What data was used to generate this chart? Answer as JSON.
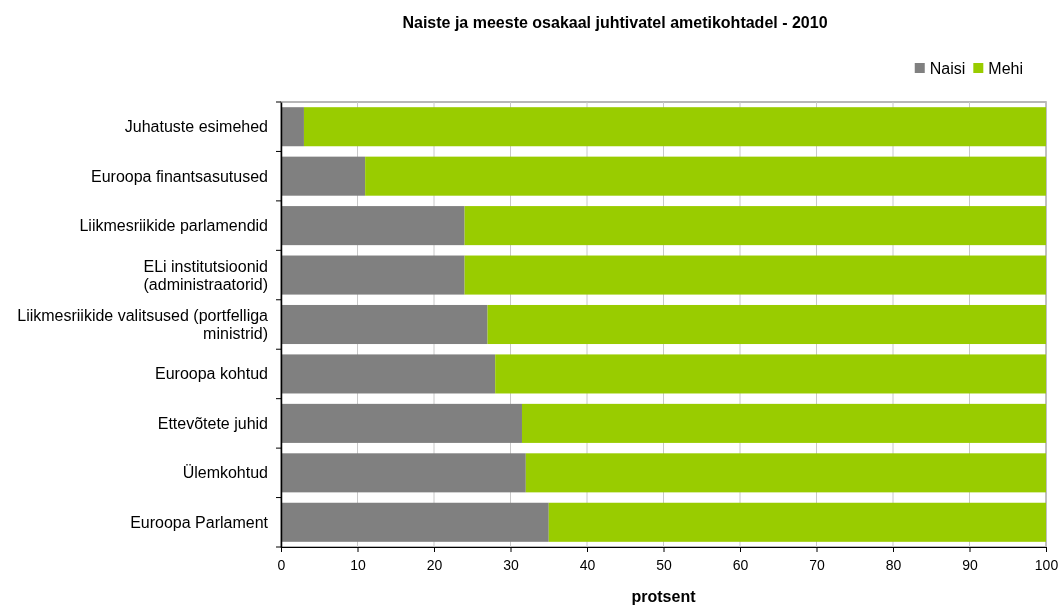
{
  "chart_data": {
    "type": "bar",
    "orientation": "horizontal",
    "stacked": true,
    "title": "Naiste ja meeste osakaal juhtivatel ametikohtadel - 2010",
    "xlabel": "protsent",
    "categories": [
      "Juhatuste esimehed",
      "Euroopa finantsasutused",
      "Liikmesriikide parlamendid",
      "ELi institutsioonid (administraatorid)",
      "Liikmesriikide valitsused (portfelliga ministrid)",
      "Euroopa kohtud",
      "Ettevõtete juhid",
      "Ülemkohtud",
      "Euroopa Parlament"
    ],
    "series": [
      {
        "name": "Naisi",
        "color": "#808080",
        "values": [
          3,
          11,
          24,
          24,
          27,
          28,
          31.5,
          32,
          35
        ]
      },
      {
        "name": "Mehi",
        "color": "#99cc00",
        "values": [
          97,
          89,
          76,
          76,
          73,
          72,
          68.5,
          68,
          65
        ]
      }
    ],
    "xlim": [
      0,
      100
    ],
    "xticks": [
      0,
      10,
      20,
      30,
      40,
      50,
      60,
      70,
      80,
      90,
      100
    ],
    "grid": "x",
    "legend": "top right"
  }
}
